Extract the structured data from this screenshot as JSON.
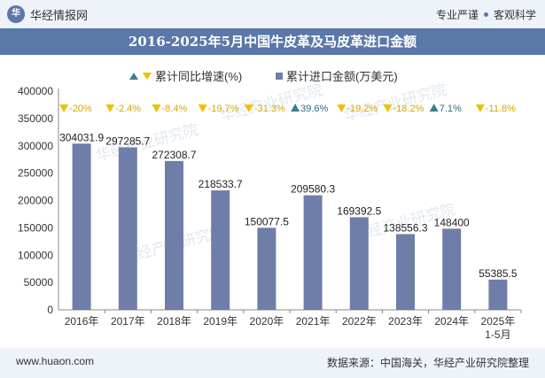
{
  "header": {
    "logo_mark": "华",
    "logo_text": "华经情报网",
    "slogan_left": "专业严谨",
    "slogan_right": "客观科学"
  },
  "title": "2016-2025年5月中国牛皮革及马皮革进口金额",
  "footer": {
    "site": "www.huaon.com",
    "source": "数据来源：中国海关，华经产业研究院整理"
  },
  "watermark": "华经产业研究院",
  "colors": {
    "bar": "#6f7ea8",
    "growth_up": "#3d7f8c",
    "growth_down": "#f0c000",
    "header_bg": "#5a78a8"
  },
  "chart_data": {
    "type": "bar",
    "categories": [
      "2016年",
      "2017年",
      "2018年",
      "2019年",
      "2020年",
      "2021年",
      "2022年",
      "2023年",
      "2024年",
      "2025年\n1-5月"
    ],
    "series": [
      {
        "name": "累计进口金额(万美元)",
        "values": [
          304031.9,
          297285.7,
          272308.7,
          218533.7,
          150077.5,
          209580.3,
          169392.5,
          138556.3,
          148400,
          55385.5
        ]
      },
      {
        "name": "累计同比增速(%)",
        "values": [
          -20,
          -2.4,
          -8.4,
          -19.7,
          -31.3,
          39.6,
          -19.2,
          -18.2,
          7.1,
          -11.8
        ]
      }
    ],
    "value_labels": [
      "304031.9",
      "297285.7",
      "272308.7",
      "218533.7",
      "150077.5",
      "209580.3",
      "169392.5",
      "138556.3",
      "148400",
      "55385.5"
    ],
    "growth_labels": [
      "-20%",
      "-2.4%",
      "-8.4%",
      "-19.7%",
      "-31.3%",
      "39.6%",
      "-19.2%",
      "-18.2%",
      "7.1%",
      "-11.8%"
    ],
    "y_ticks": [
      "0",
      "50000",
      "100000",
      "150000",
      "200000",
      "250000",
      "300000",
      "350000",
      "400000"
    ],
    "ylim": [
      0,
      400000
    ],
    "legend_position": "top-center"
  }
}
